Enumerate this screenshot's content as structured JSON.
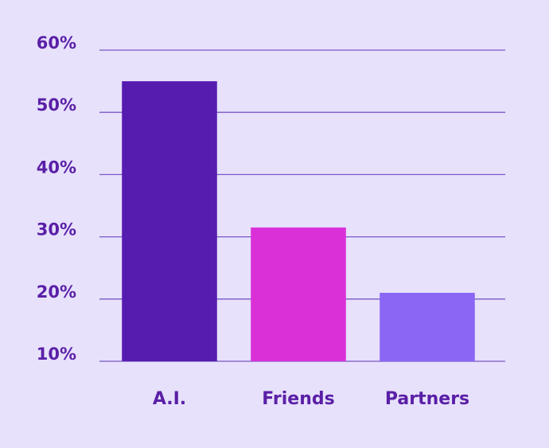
{
  "chart_data": {
    "type": "bar",
    "categories": [
      "A.I.",
      "Friends",
      "Partners"
    ],
    "values": [
      55,
      31.5,
      21
    ],
    "colors": [
      "#561cb0",
      "#d930d8",
      "#8b66f5"
    ],
    "ylim": [
      10,
      60
    ],
    "yticks": [
      {
        "value": 10,
        "label": "10%"
      },
      {
        "value": 20,
        "label": "20%"
      },
      {
        "value": 30,
        "label": "30%"
      },
      {
        "value": 40,
        "label": "40%"
      },
      {
        "value": 50,
        "label": "50%"
      },
      {
        "value": 60,
        "label": "60%"
      }
    ],
    "grid": true
  }
}
